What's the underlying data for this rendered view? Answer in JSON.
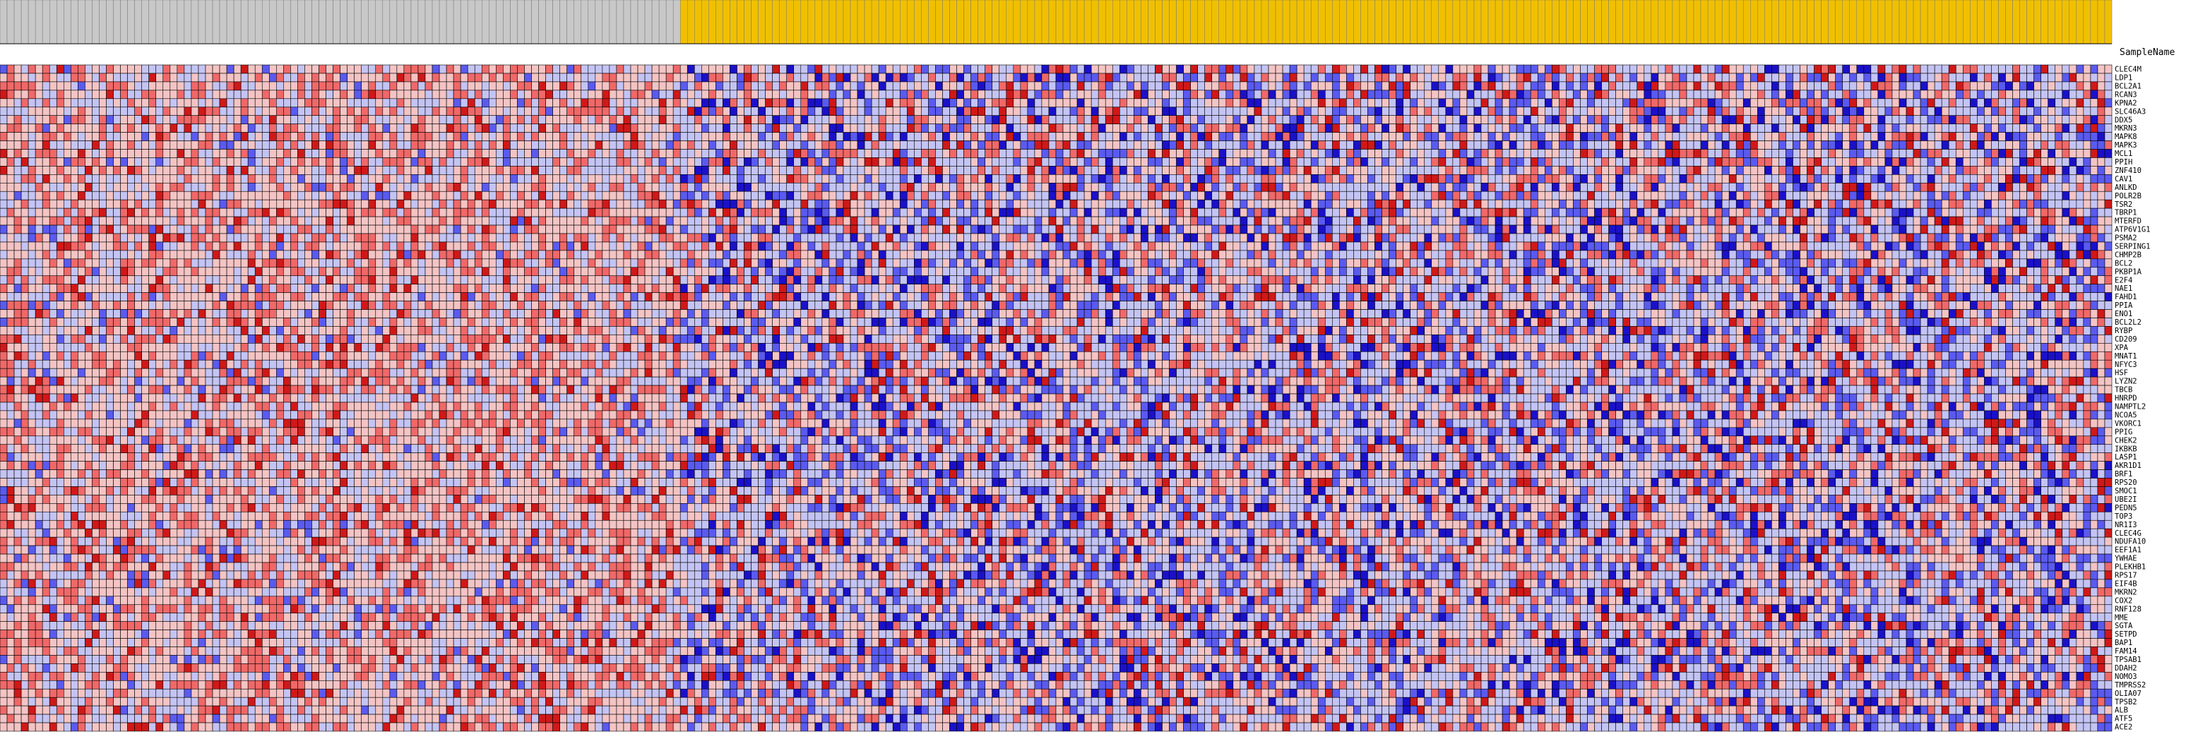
{
  "chart_data": {
    "type": "heatmap",
    "column_header_label": "SampleName",
    "colors": {
      "group_a_header": "#c8c8c8",
      "group_b_header": "#f0c000",
      "low_strong": "#1a10c8",
      "low_mid": "#5a5af0",
      "low_light": "#c4c4f4",
      "high_light": "#f4c4c4",
      "high_mid": "#f06868",
      "high_strong": "#d01818",
      "grid": "#000000"
    },
    "scale": [
      -3,
      -2,
      -1,
      0,
      1,
      2,
      3
    ],
    "group_a_count": 96,
    "group_b_count": 202,
    "genes": [
      "CLEC4M",
      "LDP1",
      "BCL2A1",
      "RCAN3",
      "KPNA2",
      "SLC46A3",
      "DDX5",
      "MKRN3",
      "MAPK8",
      "MAPK3",
      "MCL1",
      "PPIH",
      "ZNF410",
      "CAV1",
      "ANLKD",
      "POLR2B",
      "TSR2",
      "TBRP1",
      "MTERFD",
      "ATP6V1G1",
      "PSMA2",
      "SERPING1",
      "CHMP2B",
      "BCL2",
      "PKBP1A",
      "E2F4",
      "NAE1",
      "FAHD1",
      "PPIA",
      "ENO1",
      "BCL2L2",
      "RYBP",
      "CD209",
      "XPA",
      "MNAT1",
      "NFYC3",
      "HSF",
      "LYZN2",
      "TBCB",
      "HNRPD",
      "NAMPTL2",
      "NCOA5",
      "VKORC1",
      "PPIG",
      "CHEK2",
      "IKBKB",
      "LASP1",
      "AKR1D1",
      "BRF1",
      "RPS20",
      "SMOC1",
      "UBE2I",
      "PEDN5",
      "TOP3",
      "NR1I3",
      "CLEC4G",
      "NDUFA10",
      "EEF1A1",
      "YWHAE",
      "PLEKHB1",
      "RPS17",
      "EIF4B",
      "MKRN2",
      "COX2",
      "RNF128",
      "MME",
      "SGTA",
      "SETPD",
      "BAP1",
      "FAM14",
      "TPSAB1",
      "DDAH2",
      "NOMO3",
      "TMPRSS2",
      "OLIA07",
      "TPSB2",
      "ALB",
      "ATF5",
      "ACE2"
    ]
  }
}
